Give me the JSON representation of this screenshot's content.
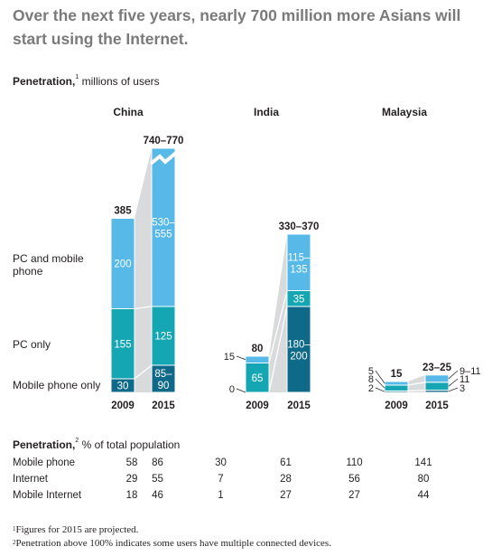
{
  "title": "Over the next five years, nearly 700 million more Asians will start using the Internet.",
  "subtitle": {
    "label": "Penetration,",
    "sup": "1",
    "text": "millions of users"
  },
  "chart_data": {
    "type": "bar",
    "stacked": true,
    "segments": [
      "Mobile phone only",
      "PC only",
      "PC and mobile phone"
    ],
    "segment_colors": [
      "#0f6a8a",
      "#15a6b4",
      "#56b9e8"
    ],
    "countries": [
      {
        "name": "China",
        "years": [
          {
            "year": "2009",
            "total": 385,
            "total_label": "385",
            "values": [
              30,
              155,
              200
            ],
            "labels": [
              "30",
              "155",
              "200"
            ]
          },
          {
            "year": "2015",
            "total": 755,
            "total_label": "740–770",
            "broken_axis": true,
            "values": [
              87.5,
              125,
              542.5
            ],
            "labels": [
              "85–\n90",
              "125",
              "530–\n555"
            ]
          }
        ]
      },
      {
        "name": "India",
        "years": [
          {
            "year": "2009",
            "total": 80,
            "total_label": "80",
            "values": [
              0,
              65,
              15
            ],
            "labels": [
              "",
              "65",
              ""
            ],
            "outside_labels": [
              "0",
              "",
              "15"
            ]
          },
          {
            "year": "2015",
            "total": 350,
            "total_label": "330–370",
            "values": [
              190,
              35,
              125
            ],
            "labels": [
              "180–\n200",
              "35",
              "115–\n135"
            ]
          }
        ]
      },
      {
        "name": "Malaysia",
        "years": [
          {
            "year": "2009",
            "total": 15,
            "total_label": "15",
            "values": [
              2,
              8,
              5
            ],
            "outside_labels": [
              "2",
              "8",
              "5"
            ]
          },
          {
            "year": "2015",
            "total": 24,
            "total_label": "23–25",
            "values": [
              3,
              11,
              10
            ],
            "outside_labels": [
              "3",
              "11",
              "9–11"
            ]
          }
        ]
      }
    ]
  },
  "penetration_table": {
    "label": "Penetration,",
    "sup": "2",
    "text": "% of total population",
    "rows": [
      {
        "label": "Mobile phone",
        "values": [
          "58",
          "86",
          "30",
          "61",
          "110",
          "141"
        ]
      },
      {
        "label": "Internet",
        "values": [
          "29",
          "55",
          "7",
          "28",
          "56",
          "80"
        ]
      },
      {
        "label": "Mobile Internet",
        "values": [
          "18",
          "46",
          "1",
          "27",
          "27",
          "44"
        ]
      }
    ]
  },
  "footnotes": [
    {
      "sup": "1",
      "text": "Figures for 2015 are projected."
    },
    {
      "sup": "2",
      "text": "Penetration above 100% indicates some users have multiple connected devices."
    }
  ]
}
